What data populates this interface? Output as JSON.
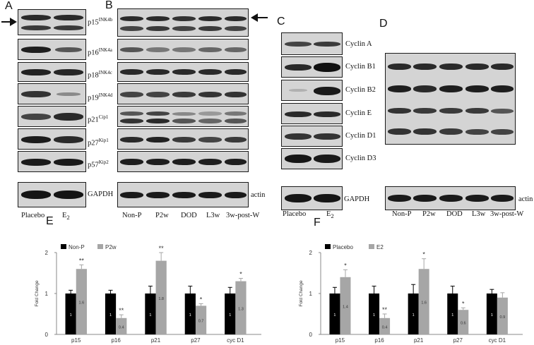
{
  "panel_letters": {
    "A": "A",
    "B": "B",
    "C": "C",
    "D": "D",
    "E": "E",
    "F": "F"
  },
  "panel_A": {
    "rows": [
      {
        "main": "p15",
        "sup": "INK4b"
      },
      {
        "main": "p16",
        "sup": "INK4a"
      },
      {
        "main": "p18",
        "sup": "INK4c"
      },
      {
        "main": "p19",
        "sup": "INK4d"
      },
      {
        "main": "p21",
        "sup": "Cip1"
      },
      {
        "main": "p27",
        "sup": "Kip1"
      },
      {
        "main": "p57",
        "sup": "Kip2"
      }
    ],
    "loading": "GAPDH",
    "lanes": {
      "placebo": "Placebo",
      "e2_main": "E",
      "e2_sub": "2"
    }
  },
  "panel_B": {
    "loading": "actin",
    "lanes": [
      "Non-P",
      "P2w",
      "DOD",
      "L3w",
      "3w-post-W"
    ]
  },
  "panel_C": {
    "rows": [
      "Cyclin A",
      "Cyclin B1",
      "Cyclin B2",
      "Cyclin E",
      "Cyclin D1",
      "Cyclin D3"
    ],
    "loading": "GAPDH",
    "lanes": {
      "placebo": "Placebo",
      "e2_main": "E",
      "e2_sub": "2"
    }
  },
  "panel_D": {
    "loading": "actin",
    "lanes": [
      "Non-P",
      "P2w",
      "DOD",
      "L3w",
      "3w-post-W"
    ]
  },
  "chart_data": [
    {
      "type": "bar",
      "panel": "E",
      "categories": [
        "p15",
        "p16",
        "p21",
        "p27",
        "cyc D1"
      ],
      "ylabel": "Fold Change",
      "ylim": [
        0,
        2
      ],
      "yticks": [
        "0",
        "1",
        "2"
      ],
      "legend_position": "top-left",
      "series": [
        {
          "name": "Non-P",
          "color": "#000000",
          "values": [
            1,
            1,
            1,
            1,
            1
          ],
          "labels": [
            "1",
            "1",
            "1",
            "1",
            "1"
          ],
          "errors": [
            0.08,
            0.08,
            0.18,
            0.18,
            0.15
          ]
        },
        {
          "name": "P2w",
          "color": "#a6a6a6",
          "values": [
            1.6,
            0.4,
            1.8,
            0.7,
            1.3
          ],
          "labels": [
            "1.6",
            "0.4",
            "1.8",
            "0.7",
            "1.3"
          ],
          "errors": [
            0.1,
            0.08,
            0.2,
            0.05,
            0.07
          ]
        }
      ],
      "significance": [
        "**",
        "**",
        "**",
        "*",
        "*"
      ]
    },
    {
      "type": "bar",
      "panel": "F",
      "categories": [
        "p15",
        "p16",
        "p21",
        "p27",
        "cyc D1"
      ],
      "ylabel": "Fold Change",
      "ylim": [
        0,
        2
      ],
      "yticks": [
        "0",
        "1",
        "2"
      ],
      "legend_position": "top-left",
      "series": [
        {
          "name": "Placebo",
          "color": "#000000",
          "values": [
            1,
            1,
            1,
            1,
            1
          ],
          "labels": [
            "1",
            "1",
            "1",
            "1",
            "1"
          ],
          "errors": [
            0.15,
            0.18,
            0.22,
            0.18,
            0.1
          ]
        },
        {
          "name": "E2",
          "color": "#a6a6a6",
          "values": [
            1.4,
            0.4,
            1.6,
            0.6,
            0.9
          ],
          "labels": [
            "1.4",
            "0.4",
            "1.6",
            "0.6",
            "0.9"
          ],
          "errors": [
            0.18,
            0.1,
            0.25,
            0.05,
            0.12
          ]
        }
      ],
      "significance": [
        "*",
        "**",
        "*",
        "*",
        ""
      ]
    }
  ]
}
